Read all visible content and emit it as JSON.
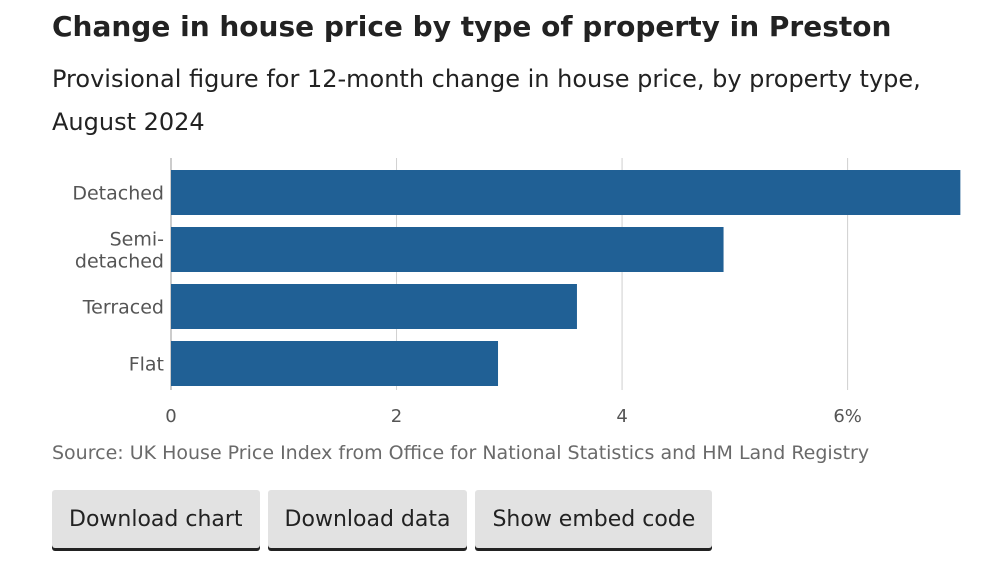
{
  "header": {
    "title": "Change in house price by type of property in Preston",
    "subtitle": "Provisional figure for 12-month change in house price, by property type, August 2024"
  },
  "chart_data": {
    "type": "bar",
    "orientation": "horizontal",
    "title": "Change in house price by type of property in Preston",
    "subtitle": "Provisional figure for 12-month change in house price, by property type, August 2024",
    "categories": [
      "Detached",
      "Semi-detached",
      "Terraced",
      "Flat"
    ],
    "category_lines": [
      [
        "Detached"
      ],
      [
        "Semi-",
        "detached"
      ],
      [
        "Terraced"
      ],
      [
        "Flat"
      ]
    ],
    "values": [
      7.0,
      4.9,
      3.6,
      2.9
    ],
    "xlim": [
      0,
      7.05
    ],
    "xticks": [
      0,
      2,
      4,
      6
    ],
    "xtick_labels": [
      "0",
      "2",
      "4",
      "6%"
    ],
    "bar_color": "#206095",
    "grid": true,
    "xlabel": "",
    "ylabel": ""
  },
  "source": "Source: UK House Price Index from Office for National Statistics and HM Land Registry",
  "buttons": {
    "download_chart": "Download chart",
    "download_data": "Download data",
    "embed": "Show embed code"
  },
  "colors": {
    "bar": "#206095",
    "grid": "#d0d0d0",
    "axis": "#bbbbbb",
    "button_bg": "#e2e2e2",
    "source_text": "#6a6a6a"
  }
}
